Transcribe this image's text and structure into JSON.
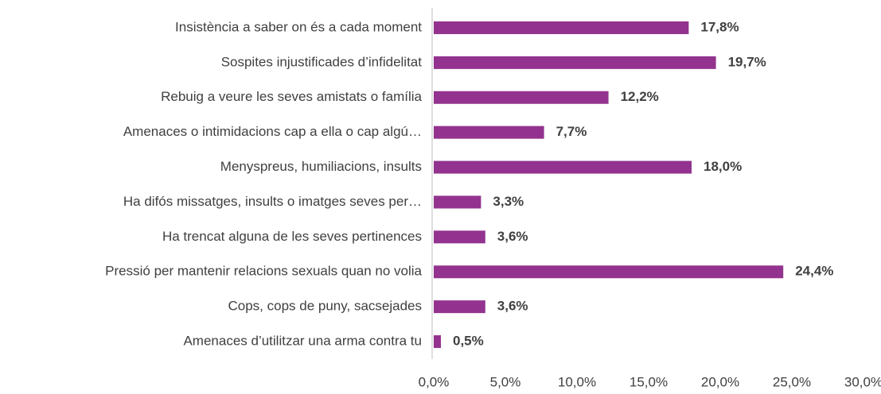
{
  "chart_data": {
    "type": "bar",
    "orientation": "horizontal",
    "categories": [
      "Insistència a saber on és a cada moment",
      "Sospites injustificades d’infidelitat",
      "Rebuig a veure les seves amistats o família",
      "Amenaces o intimidacions cap a ella o cap algú…",
      "Menyspreus, humiliacions, insults",
      "Ha difós missatges, insults o imatges seves per…",
      "Ha trencat alguna de les seves pertinences",
      "Pressió per mantenir relacions sexuals quan no volia",
      "Cops, cops de puny, sacsejades",
      "Amenaces d’utilitzar una arma contra tu"
    ],
    "values": [
      17.8,
      19.7,
      12.2,
      7.7,
      18.0,
      3.3,
      3.6,
      24.4,
      3.6,
      0.5
    ],
    "value_labels": [
      "17,8%",
      "19,7%",
      "12,2%",
      "7,7%",
      "18,0%",
      "3,3%",
      "3,6%",
      "24,4%",
      "3,6%",
      "0,5%"
    ],
    "color": "#93338f",
    "xlim": [
      0,
      30
    ],
    "xticks": [
      {
        "value": 0,
        "label": "0,0%"
      },
      {
        "value": 5,
        "label": "5,0%"
      },
      {
        "value": 10,
        "label": "10,0%"
      },
      {
        "value": 15,
        "label": "15,0%"
      },
      {
        "value": 20,
        "label": "20,0%"
      },
      {
        "value": 25,
        "label": "25,0%"
      },
      {
        "value": 30,
        "label": "30,0%"
      }
    ]
  }
}
